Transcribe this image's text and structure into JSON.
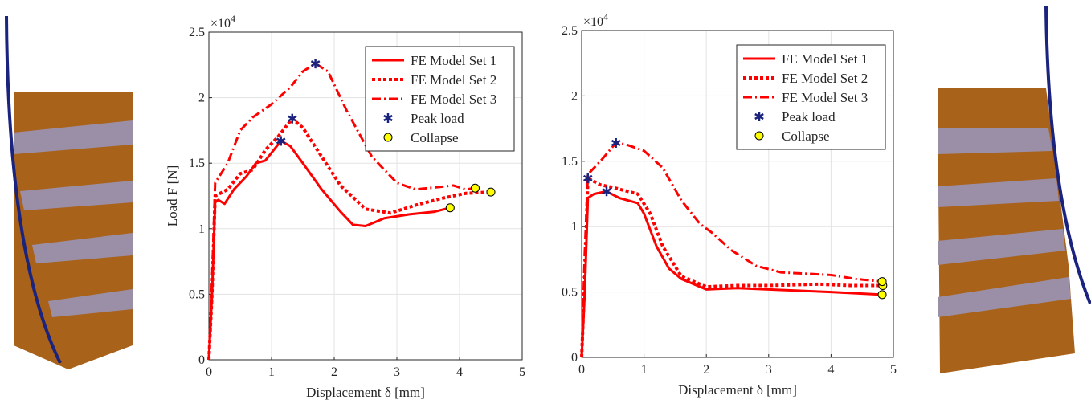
{
  "chart_data": [
    {
      "type": "line",
      "xlabel": "Displacement δ [mm]",
      "ylabel": "Load F [N]",
      "y_scale_base": "×10",
      "y_scale_exponent": "4",
      "xlim": [
        0,
        5
      ],
      "ylim": [
        0,
        2.5
      ],
      "xticks": [
        0,
        1,
        2,
        3,
        4,
        5
      ],
      "yticks": [
        0,
        0.5,
        1,
        1.5,
        2,
        2.5
      ],
      "grid": true,
      "legend": "northeast",
      "series": [
        {
          "name": "FE Model Set 1",
          "color": "#ff0000",
          "line_style": "solid",
          "x": [
            0,
            0.05,
            0.1,
            0.15,
            0.25,
            0.4,
            0.6,
            0.75,
            0.9,
            1.0,
            1.15,
            1.3,
            1.5,
            1.8,
            2.1,
            2.3,
            2.5,
            2.8,
            3.2,
            3.6,
            3.85
          ],
          "values": [
            0,
            0.5,
            1.2,
            1.22,
            1.19,
            1.3,
            1.4,
            1.5,
            1.52,
            1.58,
            1.67,
            1.63,
            1.5,
            1.3,
            1.13,
            1.03,
            1.02,
            1.08,
            1.11,
            1.13,
            1.16
          ]
        },
        {
          "name": "FE Model Set 2",
          "color": "#ff0000",
          "line_style": "dotted",
          "x": [
            0,
            0.05,
            0.1,
            0.3,
            0.5,
            0.7,
            0.9,
            1.1,
            1.33,
            1.5,
            1.8,
            2.1,
            2.5,
            2.9,
            3.3,
            3.7,
            4.1,
            4.5
          ],
          "values": [
            0,
            0.5,
            1.25,
            1.3,
            1.42,
            1.45,
            1.6,
            1.7,
            1.84,
            1.77,
            1.55,
            1.33,
            1.15,
            1.12,
            1.18,
            1.23,
            1.27,
            1.28
          ]
        },
        {
          "name": "FE Model Set 3",
          "color": "#ff0000",
          "line_style": "dashdot",
          "x": [
            0,
            0.05,
            0.1,
            0.3,
            0.5,
            0.7,
            1.0,
            1.3,
            1.5,
            1.7,
            1.9,
            2.2,
            2.6,
            3.0,
            3.3,
            3.7,
            3.9,
            4.1,
            4.25
          ],
          "values": [
            0,
            0.6,
            1.35,
            1.5,
            1.75,
            1.85,
            1.95,
            2.08,
            2.2,
            2.26,
            2.2,
            1.9,
            1.55,
            1.35,
            1.3,
            1.32,
            1.33,
            1.3,
            1.31
          ]
        },
        {
          "name": "Peak load",
          "color": "#1a237e",
          "marker": "star",
          "x": [
            1.15,
            1.33,
            1.7
          ],
          "values": [
            1.67,
            1.84,
            2.26
          ]
        },
        {
          "name": "Collapse",
          "color": "#ffff00",
          "marker": "circle",
          "x": [
            3.85,
            4.5,
            4.25
          ],
          "values": [
            1.16,
            1.28,
            1.31
          ]
        }
      ]
    },
    {
      "type": "line",
      "xlabel": "Displacement δ [mm]",
      "y_scale_base": "×10",
      "y_scale_exponent": "4",
      "xlim": [
        0,
        5
      ],
      "ylim": [
        0,
        2.5
      ],
      "xticks": [
        0,
        1,
        2,
        3,
        4,
        5
      ],
      "yticks": [
        0,
        0.5,
        1,
        1.5,
        2,
        2.5
      ],
      "grid": true,
      "legend": "northeast",
      "series": [
        {
          "name": "FE Model Set 1",
          "color": "#ff0000",
          "line_style": "solid",
          "x": [
            0,
            0.05,
            0.1,
            0.2,
            0.4,
            0.6,
            0.9,
            1.0,
            1.2,
            1.4,
            1.6,
            2.0,
            2.5,
            3.0,
            4.0,
            4.82
          ],
          "values": [
            0,
            0.5,
            1.22,
            1.25,
            1.27,
            1.22,
            1.18,
            1.1,
            0.85,
            0.68,
            0.6,
            0.52,
            0.53,
            0.52,
            0.5,
            0.48
          ]
        },
        {
          "name": "FE Model Set 2",
          "color": "#ff0000",
          "line_style": "dotted",
          "x": [
            0,
            0.05,
            0.1,
            0.3,
            0.5,
            0.9,
            1.1,
            1.3,
            1.6,
            2.0,
            2.5,
            3.0,
            3.8,
            4.3,
            4.83
          ],
          "values": [
            0,
            0.6,
            1.37,
            1.32,
            1.3,
            1.25,
            1.1,
            0.85,
            0.62,
            0.54,
            0.55,
            0.55,
            0.56,
            0.55,
            0.55
          ]
        },
        {
          "name": "FE Model Set 3",
          "color": "#ff0000",
          "line_style": "dashdot",
          "x": [
            0,
            0.05,
            0.1,
            0.3,
            0.55,
            0.7,
            1.0,
            1.3,
            1.6,
            1.9,
            2.1,
            2.4,
            2.8,
            3.2,
            3.6,
            4.0,
            4.4,
            4.82
          ],
          "values": [
            0,
            0.8,
            1.4,
            1.5,
            1.64,
            1.63,
            1.58,
            1.45,
            1.2,
            1.02,
            0.95,
            0.82,
            0.7,
            0.65,
            0.64,
            0.63,
            0.6,
            0.58
          ]
        },
        {
          "name": "Peak load",
          "color": "#1a237e",
          "marker": "star",
          "x": [
            0.4,
            0.1,
            0.55
          ],
          "values": [
            1.27,
            1.37,
            1.64
          ]
        },
        {
          "name": "Collapse",
          "color": "#ffff00",
          "marker": "circle",
          "x": [
            4.82,
            4.83,
            4.82
          ],
          "values": [
            0.48,
            0.55,
            0.58
          ]
        }
      ]
    }
  ]
}
